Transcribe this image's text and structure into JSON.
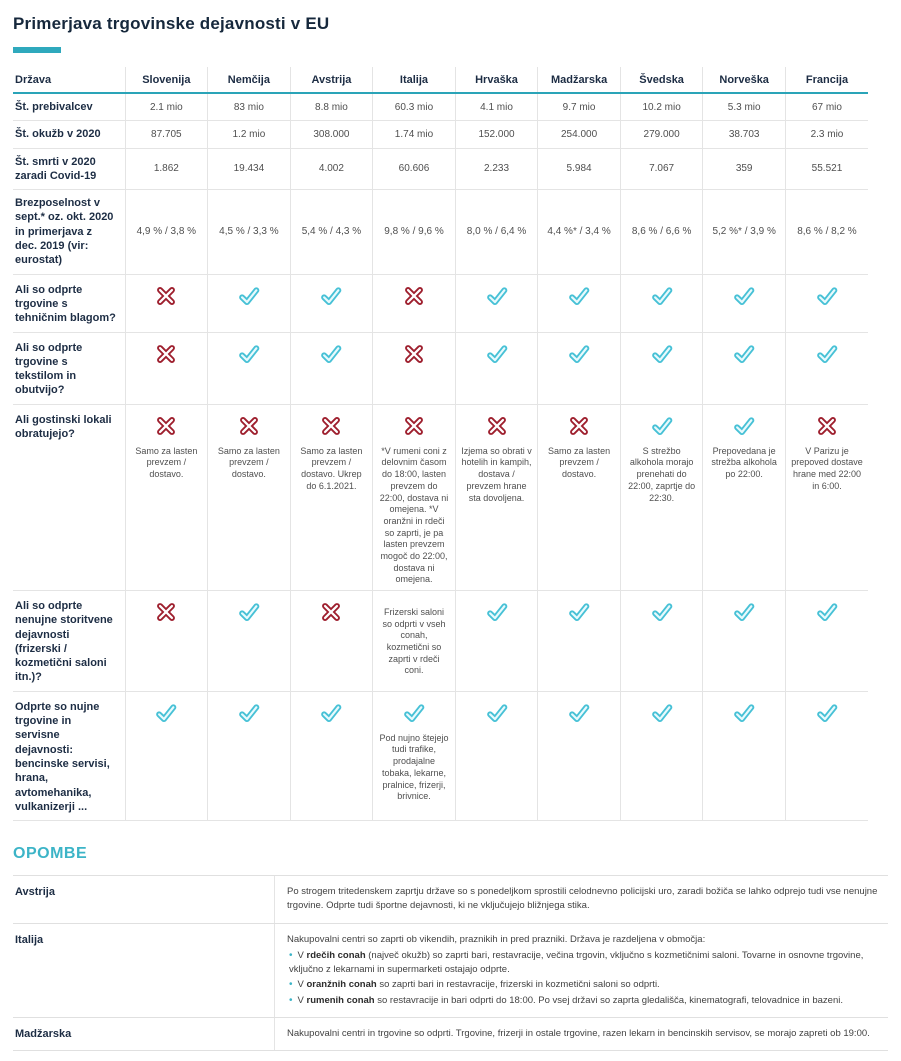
{
  "page": {
    "title": "Primerjava trgovinske dejavnosti v EU",
    "accent_color": "#2fa9bd",
    "check_color": "#47c1d6",
    "cross_color": "#9e1f2e"
  },
  "table": {
    "header": [
      "Država",
      "Slovenija",
      "Nemčija",
      "Avstrija",
      "Italija",
      "Hrvaška",
      "Madžarska",
      "Švedska",
      "Norveška",
      "Francija"
    ],
    "rows": [
      {
        "label": "Št. prebivalcev",
        "cells": [
          {
            "text": "2.1 mio"
          },
          {
            "text": "83 mio"
          },
          {
            "text": "8.8 mio"
          },
          {
            "text": "60.3 mio"
          },
          {
            "text": "4.1 mio"
          },
          {
            "text": "9.7 mio"
          },
          {
            "text": "10.2 mio"
          },
          {
            "text": "5.3 mio"
          },
          {
            "text": "67 mio"
          }
        ]
      },
      {
        "label": "Št. okužb v 2020",
        "cells": [
          {
            "text": "87.705"
          },
          {
            "text": "1.2 mio"
          },
          {
            "text": "308.000"
          },
          {
            "text": "1.74 mio"
          },
          {
            "text": "152.000"
          },
          {
            "text": "254.000"
          },
          {
            "text": "279.000"
          },
          {
            "text": "38.703"
          },
          {
            "text": "2.3 mio"
          }
        ]
      },
      {
        "label": "Št. smrti v 2020 zaradi Covid-19",
        "cells": [
          {
            "text": "1.862"
          },
          {
            "text": "19.434"
          },
          {
            "text": "4.002"
          },
          {
            "text": "60.606"
          },
          {
            "text": "2.233"
          },
          {
            "text": "5.984"
          },
          {
            "text": "7.067"
          },
          {
            "text": "359"
          },
          {
            "text": "55.521"
          }
        ]
      },
      {
        "label": "Brezposelnost v sept.* oz. okt. 2020 in primerjava z dec. 2019 (vir: eurostat)",
        "cells": [
          {
            "text": "4,9 % / 3,8 %"
          },
          {
            "text": "4,5 % / 3,3 %"
          },
          {
            "text": "5,4 % / 4,3 %"
          },
          {
            "text": "9,8 % / 9,6 %"
          },
          {
            "text": "8,0 % / 6,4 %"
          },
          {
            "text": "4,4 %* / 3,4 %"
          },
          {
            "text": "8,6 % / 6,6 %"
          },
          {
            "text": "5,2 %* / 3,9 %"
          },
          {
            "text": "8,6 % / 8,2 %"
          }
        ]
      },
      {
        "label": "Ali so odprte trgovine s tehničnim blagom?",
        "cells": [
          {
            "icon": "cross"
          },
          {
            "icon": "check"
          },
          {
            "icon": "check"
          },
          {
            "icon": "cross"
          },
          {
            "icon": "check"
          },
          {
            "icon": "check"
          },
          {
            "icon": "check"
          },
          {
            "icon": "check"
          },
          {
            "icon": "check"
          }
        ]
      },
      {
        "label": "Ali so odprte trgovine s tekstilom in obutvijo?",
        "cells": [
          {
            "icon": "cross"
          },
          {
            "icon": "check"
          },
          {
            "icon": "check"
          },
          {
            "icon": "cross"
          },
          {
            "icon": "check"
          },
          {
            "icon": "check"
          },
          {
            "icon": "check"
          },
          {
            "icon": "check"
          },
          {
            "icon": "check"
          }
        ]
      },
      {
        "label": "Ali gostinski lokali obratujejo?",
        "cells": [
          {
            "icon": "cross",
            "note": "Samo za lasten prevzem / dostavo."
          },
          {
            "icon": "cross",
            "note": "Samo za lasten prevzem / dostavo."
          },
          {
            "icon": "cross",
            "note": "Samo za lasten prevzem / dostavo. Ukrep do 6.1.2021."
          },
          {
            "icon": "cross",
            "note": "*V rumeni coni z delovnim časom do 18:00, lasten prevzem do 22:00, dostava ni omejena. *V oranžni in rdeči so zaprti, je pa lasten prevzem mogoč do 22:00, dostava ni omejena."
          },
          {
            "icon": "cross",
            "note": "Izjema so obrati v hotelih in kampih, dostava / prevzem hrane sta dovoljena."
          },
          {
            "icon": "cross",
            "note": "Samo za lasten prevzem / dostavo."
          },
          {
            "icon": "check",
            "note": "S strežbo alkohola morajo prenehati do 22:00, zaprtje do 22:30."
          },
          {
            "icon": "check",
            "note": "Prepovedana je strežba alkohola po 22:00."
          },
          {
            "icon": "cross",
            "note": "V Parizu je prepoved dostave hrane med 22:00 in 6:00."
          }
        ]
      },
      {
        "label": "Ali so odprte nenujne storitvene dejavnosti (frizerski / kozmetični saloni itn.)?",
        "cells": [
          {
            "icon": "cross"
          },
          {
            "icon": "check"
          },
          {
            "icon": "cross"
          },
          {
            "note": "Frizerski saloni so odprti v vseh conah, kozmetični so zaprti v rdeči coni."
          },
          {
            "icon": "check"
          },
          {
            "icon": "check"
          },
          {
            "icon": "check"
          },
          {
            "icon": "check"
          },
          {
            "icon": "check"
          }
        ]
      },
      {
        "label": "Odprte so nujne trgovine in servisne dejavnosti: bencinske servisi, hrana, avtomehanika, vulkanizerji ...",
        "cells": [
          {
            "icon": "check"
          },
          {
            "icon": "check"
          },
          {
            "icon": "check"
          },
          {
            "icon": "check",
            "note": "Pod nujno štejejo tudi trafike, prodajalne tobaka, lekarne, pralnice, frizerji, brivnice."
          },
          {
            "icon": "check"
          },
          {
            "icon": "check"
          },
          {
            "icon": "check"
          },
          {
            "icon": "check"
          },
          {
            "icon": "check"
          }
        ]
      }
    ]
  },
  "notes": {
    "title": "OPOMBE",
    "austria": {
      "country": "Avstrija",
      "text": "Po strogem tritedenskem zaprtju države so s ponedeljkom sprostili celodnevno policijski uro, zaradi božiča se lahko odprejo tudi vse nenujne trgovine. Odprte tudi športne dejavnosti, ki ne vključujejo bližnjega stika."
    },
    "italy": {
      "country": "Italija",
      "intro": "Nakupovalni centri so zaprti ob vikendih, praznikih in pred prazniki. Država je razdeljena v območja:",
      "bullets": [
        {
          "pre": "V ",
          "bold": "rdečih conah",
          "rest": " (največ okužb) so zaprti bari, restavracije, večina trgovin, vključno s kozmetičnimi saloni. Tovarne in osnovne trgovine, vključno z lekarnami in supermarketi ostajajo odprte."
        },
        {
          "pre": "V ",
          "bold": "oranžnih conah",
          "rest": " so zaprti bari in restavracije, frizerski in kozmetični saloni so odprti."
        },
        {
          "pre": "V ",
          "bold": "rumenih conah",
          "rest": " so restavracije in bari odprti do 18:00. Po vsej državi so zaprta gledališča, kinematografi, telovadnice in bazeni."
        }
      ]
    },
    "hungary": {
      "country": "Madžarska",
      "text": "Nakupovalni centri in trgovine so odprti. Trgovine, frizerji in ostale trgovine, razen lekarn in bencinskih servisov, se morajo zapreti ob 19:00."
    }
  }
}
